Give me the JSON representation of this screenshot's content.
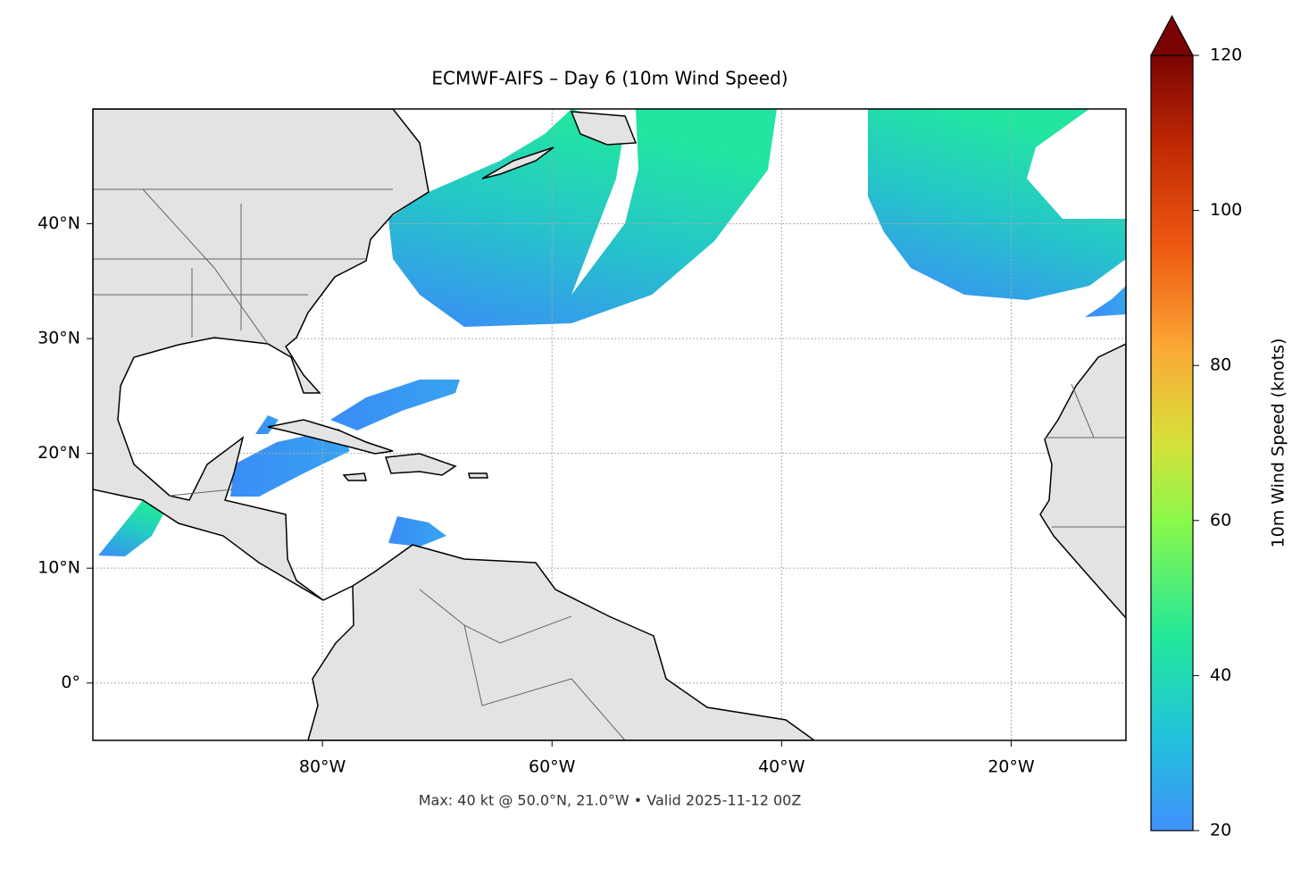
{
  "map": {
    "title": "ECMWF-AIFS – Day 6 (10m Wind Speed)",
    "footer": "Max: 40 kt @ 50.0°N, 21.0°W • Valid 2025-11-12 00Z",
    "xlim": [
      -100,
      -10
    ],
    "ylim": [
      -5,
      50
    ],
    "xticks": [
      {
        "value": -80,
        "label": "80°W"
      },
      {
        "value": -60,
        "label": "60°W"
      },
      {
        "value": -40,
        "label": "40°W"
      },
      {
        "value": -20,
        "label": "20°W"
      }
    ],
    "yticks": [
      {
        "value": 0,
        "label": "0°"
      },
      {
        "value": 10,
        "label": "10°N"
      },
      {
        "value": 20,
        "label": "20°N"
      },
      {
        "value": 30,
        "label": "30°N"
      },
      {
        "value": 40,
        "label": "40°N"
      }
    ],
    "grid": true,
    "colorbar": {
      "label": "10m Wind Speed (knots)",
      "lim": [
        20,
        120
      ],
      "ticks": [
        20,
        40,
        60,
        80,
        100,
        120
      ]
    }
  }
}
